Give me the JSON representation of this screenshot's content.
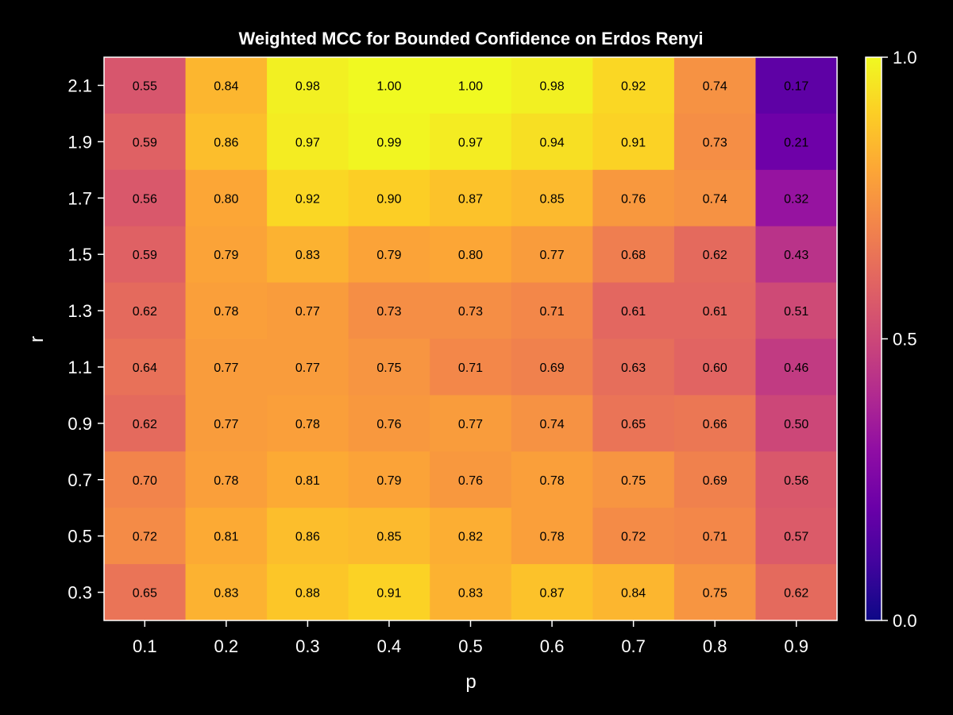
{
  "chart_data": {
    "type": "heatmap",
    "title": "Weighted MCC for Bounded Confidence on Erdos Renyi",
    "xlabel": "p",
    "ylabel": "r",
    "x": [
      "0.1",
      "0.2",
      "0.3",
      "0.4",
      "0.5",
      "0.6",
      "0.7",
      "0.8",
      "0.9"
    ],
    "y": [
      "2.1",
      "1.9",
      "1.7",
      "1.5",
      "1.3",
      "1.1",
      "0.9",
      "0.7",
      "0.5",
      "0.3"
    ],
    "values": [
      [
        0.55,
        0.84,
        0.98,
        1.0,
        1.0,
        0.98,
        0.92,
        0.74,
        0.17
      ],
      [
        0.59,
        0.86,
        0.97,
        0.99,
        0.97,
        0.94,
        0.91,
        0.73,
        0.21
      ],
      [
        0.56,
        0.8,
        0.92,
        0.9,
        0.87,
        0.85,
        0.76,
        0.74,
        0.32
      ],
      [
        0.59,
        0.79,
        0.83,
        0.79,
        0.8,
        0.77,
        0.68,
        0.62,
        0.43
      ],
      [
        0.62,
        0.78,
        0.77,
        0.73,
        0.73,
        0.71,
        0.61,
        0.61,
        0.51
      ],
      [
        0.64,
        0.77,
        0.77,
        0.75,
        0.71,
        0.69,
        0.63,
        0.6,
        0.46
      ],
      [
        0.62,
        0.77,
        0.78,
        0.76,
        0.77,
        0.74,
        0.65,
        0.66,
        0.5
      ],
      [
        0.7,
        0.78,
        0.81,
        0.79,
        0.76,
        0.78,
        0.75,
        0.69,
        0.56
      ],
      [
        0.72,
        0.81,
        0.86,
        0.85,
        0.82,
        0.78,
        0.72,
        0.71,
        0.57
      ],
      [
        0.65,
        0.83,
        0.88,
        0.91,
        0.83,
        0.87,
        0.84,
        0.75,
        0.62
      ]
    ],
    "colormap": "plasma",
    "clim": [
      0,
      1
    ],
    "colorbar_ticks": [
      "0.0",
      "0.5",
      "1.0"
    ],
    "colorbar_tick_values": [
      0,
      0.5,
      1
    ],
    "grid": false
  }
}
